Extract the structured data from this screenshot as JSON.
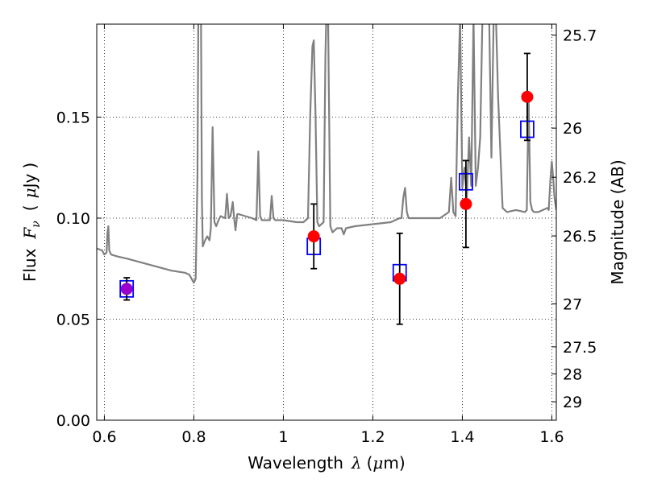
{
  "chart_data": {
    "type": "scatter",
    "xlabel": {
      "prefix": "Wavelength",
      "symbol": "λ",
      "unit_open": "(",
      "unit_mu": "μ",
      "unit_rest": "m)"
    },
    "ylabel": {
      "prefix": "Flux",
      "symbol": "F",
      "sub": "ν",
      "unit_open": "(",
      "unit_mu": "μ",
      "unit_rest": "Jy",
      "unit_close": ")"
    },
    "y2label": "Magnitude (AB)",
    "xlim": [
      0.583,
      1.61
    ],
    "ylim": [
      0.0,
      0.196
    ],
    "grid": true,
    "x_ticks": [
      {
        "value": 0.6,
        "label": "0.6"
      },
      {
        "value": 0.8,
        "label": "0.8"
      },
      {
        "value": 1.0,
        "label": "1"
      },
      {
        "value": 1.2,
        "label": "1.2"
      },
      {
        "value": 1.4,
        "label": "1.4"
      },
      {
        "value": 1.6,
        "label": "1.6"
      }
    ],
    "y_ticks": [
      {
        "value": 0.0,
        "label": "0.00"
      },
      {
        "value": 0.05,
        "label": "0.05"
      },
      {
        "value": 0.1,
        "label": "0.10"
      },
      {
        "value": 0.15,
        "label": "0.15"
      }
    ],
    "y2_ticks": [
      {
        "mag": 25.7,
        "label": "25.7"
      },
      {
        "mag": 26.0,
        "label": "26"
      },
      {
        "mag": 26.2,
        "label": "26.2"
      },
      {
        "mag": 26.5,
        "label": "26.5"
      },
      {
        "mag": 27.0,
        "label": "27"
      },
      {
        "mag": 27.5,
        "label": "27.5"
      },
      {
        "mag": 28.0,
        "label": "28"
      },
      {
        "mag": 29.0,
        "label": "29"
      }
    ],
    "template_spectrum": {
      "color": "#808080",
      "x": [
        0.583,
        0.595,
        0.6,
        0.605,
        0.607,
        0.609,
        0.611,
        0.615,
        0.63,
        0.65,
        0.7,
        0.75,
        0.78,
        0.79,
        0.8,
        0.804,
        0.808,
        0.81,
        0.812,
        0.814,
        0.816,
        0.818,
        0.82,
        0.825,
        0.83,
        0.835,
        0.838,
        0.842,
        0.846,
        0.85,
        0.855,
        0.86,
        0.87,
        0.874,
        0.878,
        0.882,
        0.887,
        0.89,
        0.893,
        0.897,
        0.9,
        0.93,
        0.94,
        0.944,
        0.948,
        0.952,
        0.97,
        0.974,
        0.978,
        0.982,
        1.0,
        1.03,
        1.045,
        1.055,
        1.06,
        1.065,
        1.068,
        1.072,
        1.076,
        1.08,
        1.09,
        1.094,
        1.096,
        1.098,
        1.1,
        1.105,
        1.11,
        1.12,
        1.13,
        1.135,
        1.14,
        1.16,
        1.2,
        1.24,
        1.26,
        1.264,
        1.268,
        1.272,
        1.276,
        1.28,
        1.3,
        1.35,
        1.37,
        1.375,
        1.38,
        1.385,
        1.39,
        1.395,
        1.4,
        1.405,
        1.41,
        1.415,
        1.42,
        1.425,
        1.43,
        1.435,
        1.44,
        1.445,
        1.45,
        1.455,
        1.46,
        1.465,
        1.47,
        1.475,
        1.48,
        1.49,
        1.5,
        1.52,
        1.54,
        1.544,
        1.548,
        1.552,
        1.556,
        1.56,
        1.57,
        1.58,
        1.59,
        1.593,
        1.597,
        1.6,
        1.603,
        1.606,
        1.61
      ],
      "y": [
        0.085,
        0.084,
        0.082,
        0.083,
        0.093,
        0.096,
        0.084,
        0.082,
        0.081,
        0.08,
        0.077,
        0.074,
        0.073,
        0.072,
        0.068,
        0.07,
        0.12,
        0.2,
        0.2,
        0.2,
        0.2,
        0.11,
        0.086,
        0.089,
        0.091,
        0.089,
        0.095,
        0.145,
        0.098,
        0.096,
        0.099,
        0.101,
        0.1,
        0.112,
        0.1,
        0.101,
        0.108,
        0.1,
        0.094,
        0.102,
        0.102,
        0.1,
        0.099,
        0.133,
        0.101,
        0.099,
        0.099,
        0.111,
        0.1,
        0.099,
        0.099,
        0.098,
        0.098,
        0.1,
        0.15,
        0.185,
        0.188,
        0.15,
        0.098,
        0.096,
        0.098,
        0.18,
        0.2,
        0.2,
        0.2,
        0.096,
        0.093,
        0.095,
        0.095,
        0.092,
        0.095,
        0.096,
        0.097,
        0.098,
        0.1,
        0.1,
        0.11,
        0.115,
        0.103,
        0.1,
        0.1,
        0.1,
        0.103,
        0.12,
        0.103,
        0.101,
        0.16,
        0.2,
        0.115,
        0.125,
        0.11,
        0.14,
        0.116,
        0.2,
        0.116,
        0.125,
        0.14,
        0.2,
        0.2,
        0.2,
        0.2,
        0.13,
        0.2,
        0.2,
        0.16,
        0.105,
        0.103,
        0.104,
        0.103,
        0.104,
        0.16,
        0.108,
        0.104,
        0.103,
        0.103,
        0.104,
        0.105,
        0.104,
        0.12,
        0.128,
        0.12,
        0.11,
        0.104
      ]
    },
    "template_boxes": {
      "color": "#0000ff",
      "x": [
        0.65,
        1.068,
        1.26,
        1.408,
        1.545
      ],
      "y": [
        0.065,
        0.086,
        0.073,
        0.118,
        0.144
      ]
    },
    "observed": {
      "x": [
        0.65,
        1.068,
        1.26,
        1.408,
        1.545
      ],
      "y": [
        0.065,
        0.091,
        0.07,
        0.107,
        0.16
      ],
      "yerr": [
        0.0055,
        0.016,
        0.0225,
        0.0215,
        0.0215
      ],
      "colors": [
        "#9900cc",
        "#ff0000",
        "#ff0000",
        "#ff0000",
        "#ff0000"
      ]
    }
  }
}
